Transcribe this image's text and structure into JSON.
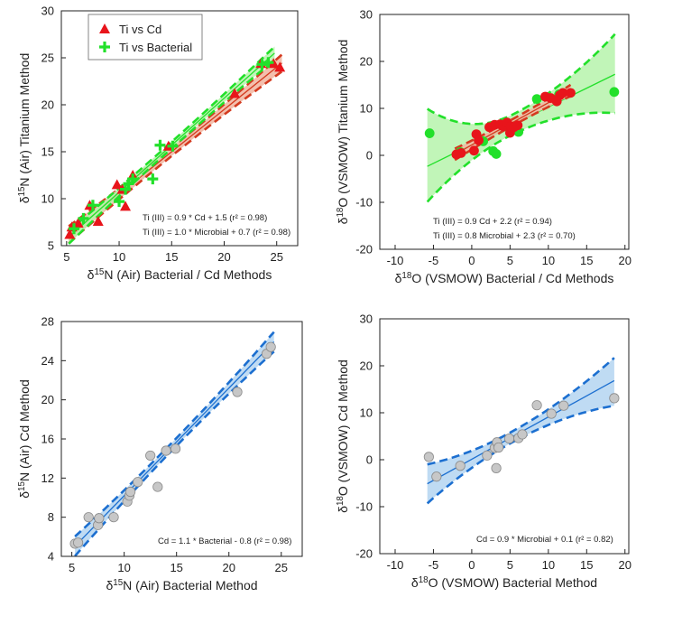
{
  "colors": {
    "red": "#e8141b",
    "red_band": "#f2b8a4",
    "red_line": "#d43a1f",
    "green": "#22e02a",
    "green_band": "#b6f3ac",
    "blue": "#1c6fd0",
    "blue_band": "#b8d7f2",
    "grey_fill": "#c7c7c7",
    "grey_stroke": "#8a8a8a"
  },
  "chart_data": [
    {
      "id": "A",
      "type": "scatter",
      "xlabel": "δ15N (Air) Bacterial / Cd Methods",
      "ylabel": "δ15N (Air) Titanium Method",
      "xlim": [
        4.5,
        27
      ],
      "ylim": [
        5,
        30
      ],
      "xticks": [
        5,
        10,
        15,
        20,
        25
      ],
      "yticks": [
        5,
        10,
        15,
        20,
        25,
        30
      ],
      "legend": {
        "position": "top-left",
        "entries": [
          "Ti vs Cd",
          "Ti vs Bacterial"
        ]
      },
      "equations": [
        "Ti (III) = 0.9 * Cd + 1.5 (r² = 0.98)",
        "Ti (III) = 1.0 * Microbial  + 0.7 (r² = 0.98)"
      ],
      "series": [
        {
          "name": "Ti vs Cd",
          "marker": "triangle",
          "color": "red",
          "x": [
            5.3,
            5.5,
            6.1,
            7.2,
            8.0,
            9.8,
            10.3,
            10.6,
            11.3,
            14.7,
            21.0,
            23.5,
            24.7,
            25.3
          ],
          "y": [
            6.2,
            7.0,
            7.4,
            9.3,
            7.6,
            11.5,
            11.0,
            9.2,
            12.5,
            15.6,
            21.2,
            24.4,
            24.4,
            24.0
          ],
          "fit": {
            "slope": 0.9,
            "intercept": 1.5,
            "x0": 5.2,
            "x1": 25.5,
            "ci": [
              0.9,
              0.45,
              0.9
            ]
          }
        },
        {
          "name": "Ti vs Bacterial",
          "marker": "plus",
          "color": "green",
          "x": [
            5.7,
            6.6,
            7.5,
            10.0,
            10.6,
            10.9,
            11.3,
            13.2,
            13.9,
            15.1,
            23.6,
            24.2
          ],
          "y": [
            6.8,
            7.9,
            9.3,
            9.7,
            11.0,
            11.6,
            12.1,
            12.1,
            15.7,
            15.6,
            24.3,
            24.5
          ],
          "fit": {
            "slope": 1.0,
            "intercept": 0.7,
            "x0": 5.2,
            "x1": 24.8,
            "ci": [
              0.7,
              0.35,
              0.7
            ]
          }
        }
      ]
    },
    {
      "id": "B",
      "type": "scatter",
      "xlabel": "δ18O (VSMOW) Bacterial / Cd Methods",
      "ylabel": "δ18O (VSMOW) Titanium Method",
      "xlim": [
        -12,
        20.5
      ],
      "ylim": [
        -20,
        30
      ],
      "xticks": [
        -10,
        -5,
        0,
        5,
        10,
        15,
        20
      ],
      "yticks": [
        -20,
        -10,
        0,
        10,
        20,
        30
      ],
      "equations": [
        "Ti (III) = 0.9 Cd + 2.2  (r²  = 0.94)",
        "Ti (III) = 0.8 Microbial  + 2.3  (r²  = 0.70)"
      ],
      "series": [
        {
          "name": "",
          "marker": "circle",
          "color": "green",
          "x": [
            -5.5,
            -1.5,
            1.5,
            2.8,
            3.2,
            5.0,
            6.1,
            8.5,
            11.4,
            18.6
          ],
          "y": [
            4.7,
            0.7,
            3.0,
            0.9,
            0.3,
            5.5,
            5.0,
            12.0,
            13.0,
            13.5
          ],
          "fit": {
            "slope": 0.8,
            "intercept": 2.3,
            "x0": -5.8,
            "x1": 18.7,
            "ci_low": [
              -9.9,
              9.0
            ],
            "ci_high": [
              9.9,
              25.8
            ]
          }
        },
        {
          "name": "",
          "marker": "circle",
          "color": "red",
          "x": [
            -2.0,
            -1.4,
            0.3,
            0.6,
            0.9,
            2.3,
            3.0,
            3.7,
            4.1,
            4.6,
            5.0,
            5.1,
            5.5,
            6.0,
            9.6,
            10.3,
            11.1,
            11.5,
            11.9,
            12.9
          ],
          "y": [
            0.2,
            0.5,
            1.0,
            4.5,
            3.2,
            6.0,
            6.5,
            6.6,
            6.2,
            7.0,
            4.8,
            6.2,
            6.0,
            6.4,
            12.5,
            12.2,
            11.5,
            12.8,
            13.3,
            13.3
          ],
          "fit": {
            "slope": 0.9,
            "intercept": 2.2,
            "x0": -2.2,
            "x1": 12.9,
            "ci": [
              1.2,
              0.7,
              1.2
            ]
          }
        }
      ]
    },
    {
      "id": "C",
      "type": "scatter",
      "xlabel": "δ15N (Air) Bacterial Method",
      "ylabel": "δ15N (Air) Cd Method",
      "xlim": [
        4,
        27
      ],
      "ylim": [
        4,
        28
      ],
      "xticks": [
        5,
        10,
        15,
        20,
        25
      ],
      "yticks": [
        4,
        8,
        12,
        16,
        20,
        24,
        28
      ],
      "equations": [
        "Cd  = 1.1 * Bacterial - 0.8 (r² = 0.98)"
      ],
      "series": [
        {
          "name": "",
          "marker": "circle",
          "color": "grey",
          "x": [
            5.3,
            5.6,
            6.6,
            7.5,
            7.6,
            9.0,
            10.3,
            10.5,
            10.6,
            11.3,
            12.5,
            13.2,
            14.0,
            14.9,
            20.8,
            23.6,
            24.0
          ],
          "y": [
            5.3,
            5.4,
            8.0,
            7.2,
            7.9,
            8.0,
            9.6,
            10.2,
            10.6,
            11.6,
            14.3,
            11.1,
            14.8,
            15.0,
            20.8,
            24.7,
            25.4
          ],
          "fit": {
            "slope": 1.1,
            "intercept": -0.8,
            "x0": 5.3,
            "x1": 24.3,
            "ci": [
              1.0,
              0.4,
              1.0
            ]
          }
        }
      ]
    },
    {
      "id": "D",
      "type": "scatter",
      "xlabel": "δ18O (VSMOW) Bacterial Method",
      "ylabel": "δ18O (VSMOW) Cd Method",
      "xlim": [
        -12,
        20.5
      ],
      "ylim": [
        -20,
        30
      ],
      "xticks": [
        -10,
        -5,
        0,
        5,
        10,
        15,
        20
      ],
      "yticks": [
        -20,
        -10,
        0,
        10,
        20,
        30
      ],
      "equations": [
        "Cd = 0.9 * Microbial + 0.1 (r² = 0.82)"
      ],
      "series": [
        {
          "name": "",
          "marker": "circle",
          "color": "grey",
          "x": [
            -5.6,
            -4.6,
            -1.5,
            2.0,
            3.0,
            3.2,
            3.3,
            3.5,
            4.9,
            6.1,
            6.6,
            8.5,
            10.4,
            12.0,
            18.6
          ],
          "y": [
            0.6,
            -3.6,
            -1.3,
            0.9,
            2.5,
            -1.8,
            3.7,
            2.6,
            4.5,
            4.6,
            5.4,
            11.6,
            9.8,
            11.5,
            13.1
          ],
          "fit": {
            "slope": 0.9,
            "intercept": 0.1,
            "x0": -5.8,
            "x1": 18.6,
            "ci_low": [
              -9.3,
              11.5
            ],
            "ci_high": [
              -1.0,
              21.7
            ]
          }
        }
      ]
    }
  ]
}
